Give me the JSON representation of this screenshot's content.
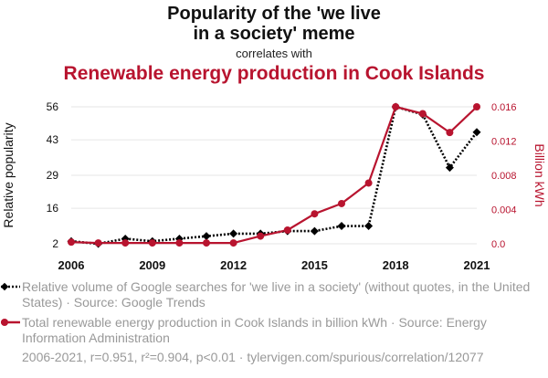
{
  "title_line1": "Popularity of the 'we live",
  "title_line2": "in a society' meme",
  "correlates_text": "correlates with",
  "title_line3": "Renewable energy production in Cook Islands",
  "legend": [
    {
      "text": "Relative volume of Google searches for 'we live in a society' (without quotes, in the United States) · Source: Google Trends",
      "color": "#000000"
    },
    {
      "text": "Total renewable energy production in Cook Islands in billion kWh · Source: Energy Information Administration",
      "color": "#b8142f"
    }
  ],
  "footer": "2006-2021, r=0.951, r²=0.904, p<0.01 · tylervigen.com/spurious/correlation/12077",
  "chart_data": {
    "type": "line",
    "x": [
      2006,
      2007,
      2008,
      2009,
      2010,
      2011,
      2012,
      2013,
      2014,
      2015,
      2016,
      2017,
      2018,
      2019,
      2020,
      2021
    ],
    "xticks": [
      "2006",
      "2009",
      "2012",
      "2015",
      "2018",
      "2021"
    ],
    "xlim": [
      2006,
      2021
    ],
    "ylabel_left": "Relative popularity",
    "ylabel_right": "Billion kWh",
    "yticks_left": [
      "2",
      "16",
      "29",
      "43",
      "56"
    ],
    "yticks_right": [
      "0.0",
      "0.004",
      "0.008",
      "0.012",
      "0.016"
    ],
    "ylim_left": [
      2,
      56
    ],
    "ylim_right": [
      0,
      0.016
    ],
    "grid": true,
    "series": [
      {
        "axis": "left",
        "color": "#000000",
        "style": "dotted",
        "marker": "diamond",
        "values": [
          3,
          2,
          4,
          3,
          4,
          5,
          6,
          6,
          7,
          7,
          9,
          9,
          56,
          53,
          32,
          46
        ]
      },
      {
        "axis": "right",
        "color": "#b8142f",
        "style": "solid",
        "marker": "circle",
        "values": [
          0.0002,
          0.0001,
          0.0001,
          0.0001,
          0.0001,
          0.0001,
          0.0001,
          0.0009,
          0.0016,
          0.0035,
          0.0047,
          0.0071,
          0.016,
          0.0152,
          0.013,
          0.016
        ]
      }
    ]
  }
}
